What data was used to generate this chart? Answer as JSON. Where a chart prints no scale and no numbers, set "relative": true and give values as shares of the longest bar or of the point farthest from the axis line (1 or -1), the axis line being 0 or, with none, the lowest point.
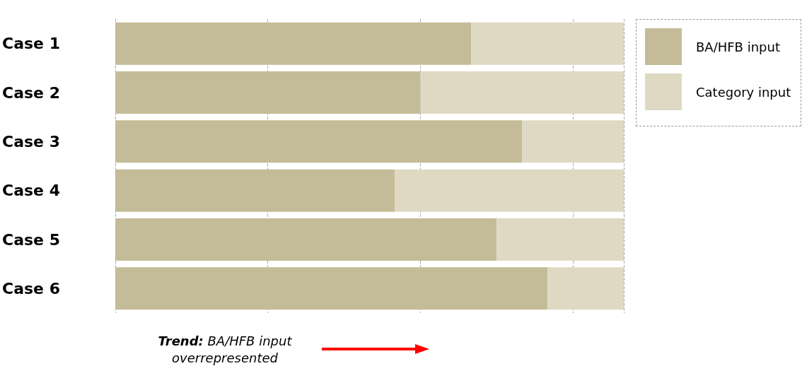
{
  "chart_data": {
    "type": "bar",
    "orientation": "horizontal",
    "stacked": true,
    "relative": true,
    "categories": [
      "Case 1",
      "Case 2",
      "Case 3",
      "Case 4",
      "Case 5",
      "Case 6"
    ],
    "series": [
      {
        "name": "BA/HFB input",
        "color": "#c4bc98",
        "values": [
          0.7,
          0.6,
          0.8,
          0.55,
          0.75,
          0.85
        ]
      },
      {
        "name": "Category input",
        "color": "#dfd9c3",
        "values": [
          0.3,
          0.4,
          0.2,
          0.45,
          0.25,
          0.15
        ]
      }
    ],
    "grid": "x",
    "legend": "top right",
    "annotations": [
      "Trend: BA/HFB input overrepresented"
    ]
  }
}
